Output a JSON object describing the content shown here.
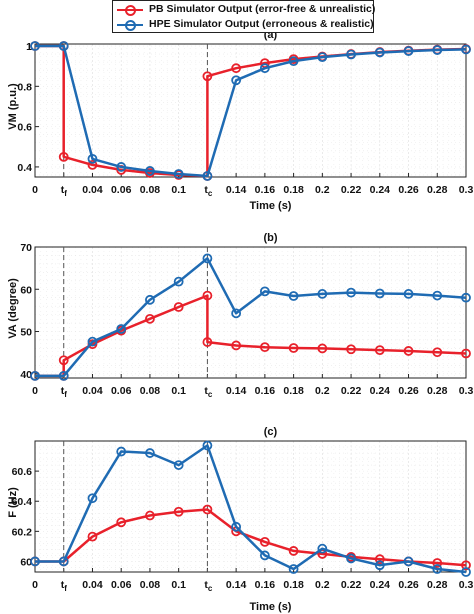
{
  "legend": {
    "items": [
      {
        "label": "PB Simulator Output (error-free & unrealistic)",
        "color": "#e8212b"
      },
      {
        "label": "HPE Simulator Output (erroneous & realistic)",
        "color": "#1f6bb3"
      }
    ]
  },
  "colors": {
    "pb": "#e8212b",
    "hpe": "#1f6bb3",
    "grid": "#dddddd",
    "fault_line": "#555555"
  },
  "chart_data": [
    {
      "type": "line",
      "title": "(a)",
      "xlabel": "Time (s)",
      "ylabel": "VM (p.u.)",
      "xlim": [
        0,
        0.3
      ],
      "ylim": [
        0.35,
        1.01
      ],
      "yticks": [
        0.4,
        0.6,
        0.8,
        1
      ],
      "ytick_labels": [
        "0.4",
        "0.6",
        "0.8",
        "1"
      ],
      "xtick_labels": [
        "0",
        "tf",
        "0.04",
        "0.06",
        "0.08",
        "0.1",
        "tc",
        "0.14",
        "0.16",
        "0.18",
        "0.2",
        "0.22",
        "0.24",
        "0.26",
        "0.28",
        "0.3"
      ],
      "grid": true,
      "vlines": [
        0.02,
        0.12
      ],
      "series": [
        {
          "name": "PB Simulator Output (error-free & unrealistic)",
          "color": "#e8212b",
          "x": [
            0,
            0.02,
            0.02,
            0.04,
            0.06,
            0.08,
            0.1,
            0.12,
            0.12,
            0.14,
            0.16,
            0.18,
            0.2,
            0.22,
            0.24,
            0.26,
            0.28,
            0.3
          ],
          "y": [
            1.0,
            1.0,
            0.45,
            0.41,
            0.385,
            0.37,
            0.36,
            0.355,
            0.85,
            0.89,
            0.915,
            0.935,
            0.948,
            0.96,
            0.97,
            0.977,
            0.982,
            0.985
          ]
        },
        {
          "name": "HPE Simulator Output (erroneous & realistic)",
          "color": "#1f6bb3",
          "x": [
            0,
            0.02,
            0.04,
            0.06,
            0.08,
            0.1,
            0.12,
            0.14,
            0.16,
            0.18,
            0.2,
            0.22,
            0.24,
            0.26,
            0.28,
            0.3
          ],
          "y": [
            1.0,
            1.0,
            0.44,
            0.4,
            0.38,
            0.365,
            0.355,
            0.83,
            0.89,
            0.925,
            0.945,
            0.958,
            0.968,
            0.975,
            0.98,
            0.983
          ]
        }
      ]
    },
    {
      "type": "line",
      "title": "(b)",
      "xlabel": "",
      "ylabel": "VA (degree)",
      "xlim": [
        0,
        0.3
      ],
      "ylim": [
        39,
        70
      ],
      "yticks": [
        40,
        50,
        60,
        70
      ],
      "ytick_labels": [
        "40",
        "50",
        "60",
        "70"
      ],
      "xtick_labels": [
        "0",
        "tf",
        "0.04",
        "0.06",
        "0.08",
        "0.1",
        "tc",
        "0.14",
        "0.16",
        "0.18",
        "0.2",
        "0.22",
        "0.24",
        "0.26",
        "0.28",
        "0.3"
      ],
      "grid": true,
      "vlines": [
        0.02,
        0.12
      ],
      "series": [
        {
          "name": "PB Simulator Output (error-free & unrealistic)",
          "color": "#e8212b",
          "x": [
            0,
            0.02,
            0.02,
            0.04,
            0.06,
            0.08,
            0.1,
            0.12,
            0.12,
            0.14,
            0.16,
            0.18,
            0.2,
            0.22,
            0.24,
            0.26,
            0.28,
            0.3
          ],
          "y": [
            39.5,
            39.5,
            43.2,
            47.0,
            50.2,
            53.0,
            55.8,
            58.5,
            47.5,
            46.7,
            46.3,
            46.1,
            46.0,
            45.8,
            45.6,
            45.4,
            45.1,
            44.8
          ]
        },
        {
          "name": "HPE Simulator Output (erroneous & realistic)",
          "color": "#1f6bb3",
          "x": [
            0,
            0.02,
            0.04,
            0.06,
            0.08,
            0.1,
            0.12,
            0.14,
            0.16,
            0.18,
            0.2,
            0.22,
            0.24,
            0.26,
            0.28,
            0.3
          ],
          "y": [
            39.5,
            39.5,
            47.6,
            50.6,
            57.5,
            61.8,
            67.3,
            54.3,
            59.5,
            58.4,
            58.9,
            59.2,
            59.0,
            58.9,
            58.5,
            58.0
          ]
        }
      ]
    },
    {
      "type": "line",
      "title": "(c)",
      "xlabel": "Time (s)",
      "ylabel": "F (Hz)",
      "xlim": [
        0,
        0.3
      ],
      "ylim": [
        59.93,
        60.8
      ],
      "yticks": [
        60.0,
        60.2,
        60.4,
        60.6
      ],
      "ytick_labels": [
        "60",
        "60.2",
        "60.4",
        "60.6"
      ],
      "xtick_labels": [
        "0",
        "tf",
        "0.04",
        "0.06",
        "0.08",
        "0.1",
        "tc",
        "0.14",
        "0.16",
        "0.18",
        "0.2",
        "0.22",
        "0.24",
        "0.26",
        "0.28",
        "0.3"
      ],
      "grid": true,
      "vlines": [
        0.02,
        0.12
      ],
      "series": [
        {
          "name": "PB Simulator Output (error-free & unrealistic)",
          "color": "#e8212b",
          "x": [
            0,
            0.02,
            0.04,
            0.06,
            0.08,
            0.1,
            0.12,
            0.14,
            0.16,
            0.18,
            0.2,
            0.22,
            0.24,
            0.26,
            0.28,
            0.3
          ],
          "y": [
            60.0,
            60.0,
            60.165,
            60.26,
            60.305,
            60.33,
            60.345,
            60.2,
            60.13,
            60.07,
            60.05,
            60.03,
            60.015,
            60.0,
            59.99,
            59.975
          ]
        },
        {
          "name": "HPE Simulator Output (erroneous & realistic)",
          "color": "#1f6bb3",
          "x": [
            0,
            0.02,
            0.04,
            0.06,
            0.08,
            0.1,
            0.12,
            0.14,
            0.16,
            0.18,
            0.2,
            0.22,
            0.24,
            0.26,
            0.28,
            0.3
          ],
          "y": [
            60.0,
            60.0,
            60.42,
            60.73,
            60.72,
            60.64,
            60.77,
            60.23,
            60.04,
            59.95,
            60.085,
            60.02,
            59.975,
            60.0,
            59.95,
            59.93
          ]
        }
      ]
    }
  ]
}
